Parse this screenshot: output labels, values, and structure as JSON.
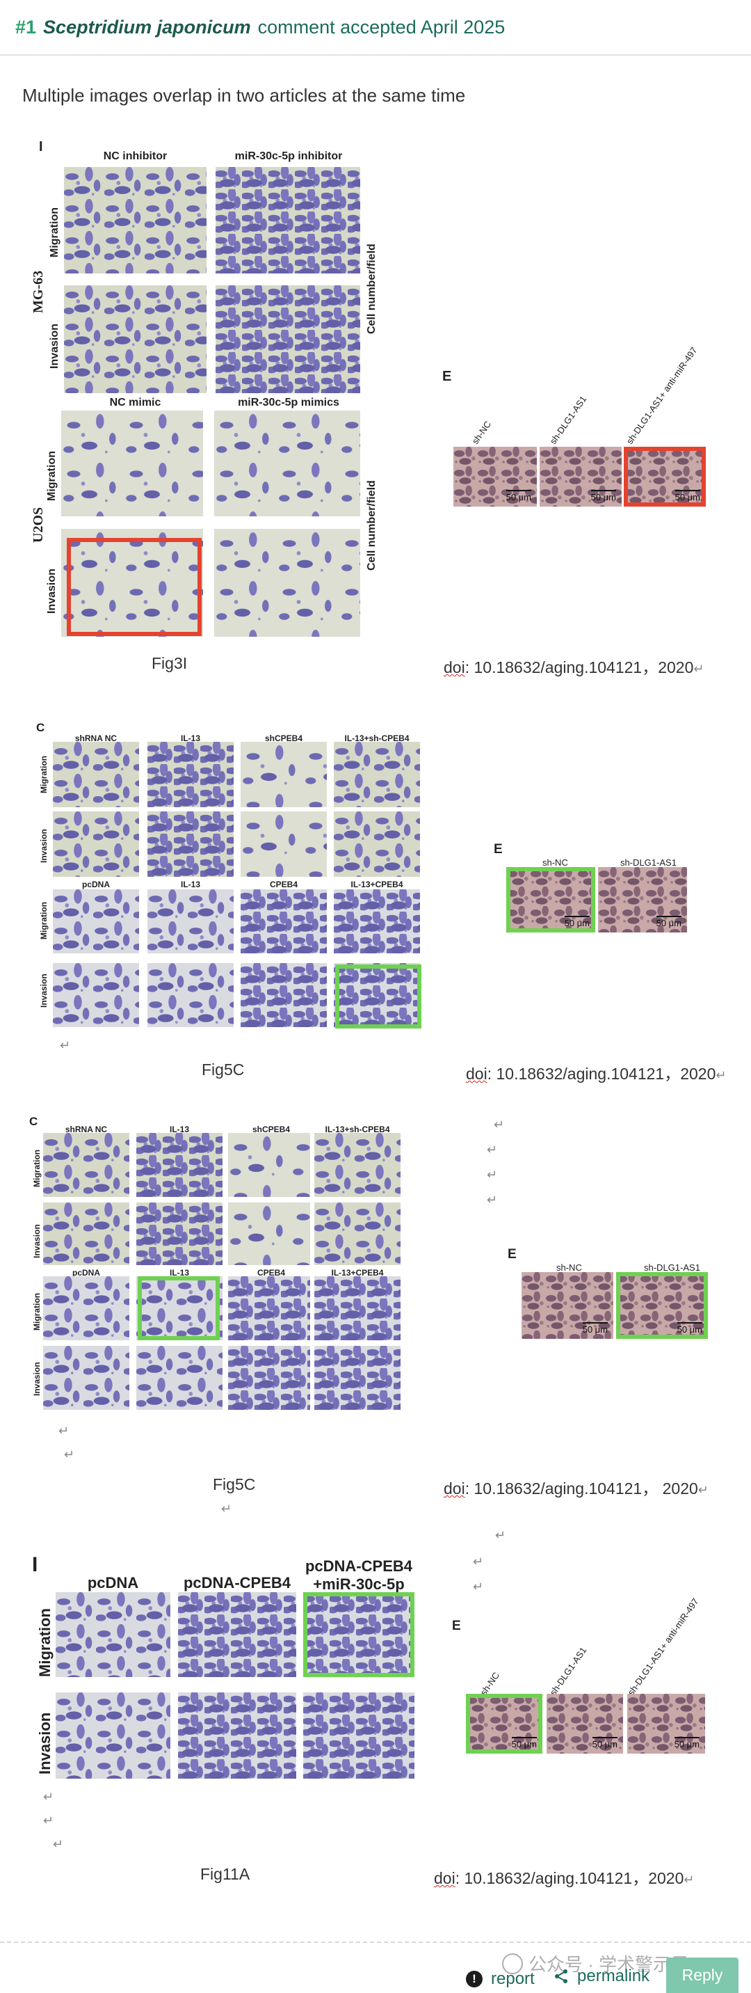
{
  "header": {
    "number": "#1",
    "species": "Sceptridium japonicum",
    "status": "comment accepted April 2025"
  },
  "comment": {
    "text": "Multiple images overlap in two articles at the same time"
  },
  "figures": [
    {
      "left_panel": {
        "letter": "I",
        "columns_top": [
          "NC inhibitor",
          "miR-30c-5p inhibitor"
        ],
        "columns_bottom": [
          "NC mimic",
          "miR-30c-5p mimics"
        ],
        "rows": [
          "Migration",
          "Invasion",
          "Migration",
          "Invasion"
        ],
        "groups": [
          "MG-63",
          "U2OS"
        ],
        "side_label": "Cell number/field"
      },
      "right_panel": {
        "letter": "E",
        "columns": [
          "sh-NC",
          "sh-DLG1-AS1",
          "sh-DLG1-AS1+ anti-miR-497"
        ],
        "scale": "50 μm"
      },
      "caption": "Fig3I",
      "doi_prefix": "doi",
      "doi_rest": ": 10.18632/aging.104121，2020"
    },
    {
      "left_panel": {
        "letter": "C",
        "columns_top": [
          "shRNA NC",
          "IL-13",
          "shCPEB4",
          "IL-13+sh-CPEB4"
        ],
        "columns_bottom": [
          "pcDNA",
          "IL-13",
          "CPEB4",
          "IL-13+CPEB4"
        ],
        "rows": [
          "Migration",
          "Invasion",
          "Migration",
          "Invasion"
        ]
      },
      "right_panel": {
        "letter": "E",
        "columns": [
          "sh-NC",
          "sh-DLG1-AS1"
        ],
        "scale": "50 μm"
      },
      "caption": "Fig5C",
      "doi_prefix": "doi",
      "doi_rest": ": 10.18632/aging.104121，2020"
    },
    {
      "left_panel": {
        "letter": "C",
        "columns_top": [
          "shRNA NC",
          "IL-13",
          "shCPEB4",
          "IL-13+sh-CPEB4"
        ],
        "columns_bottom": [
          "pcDNA",
          "IL-13",
          "CPEB4",
          "IL-13+CPEB4"
        ],
        "rows": [
          "Migration",
          "Invasion",
          "Migration",
          "Invasion"
        ]
      },
      "right_panel": {
        "letter": "E",
        "columns": [
          "sh-NC",
          "sh-DLG1-AS1"
        ],
        "scale": "50 μm"
      },
      "caption": "Fig5C",
      "doi_prefix": "doi",
      "doi_rest": ": 10.18632/aging.104121， 2020"
    },
    {
      "left_panel": {
        "letter": "I",
        "columns": [
          "pcDNA",
          "pcDNA-CPEB4",
          "pcDNA-CPEB4 +miR-30c-5p"
        ],
        "rows": [
          "Migration",
          "Invasion"
        ]
      },
      "right_panel": {
        "letter": "E",
        "columns": [
          "sh-NC",
          "sh-DLG1-AS1",
          "sh-DLG1-AS1+ anti-miR-497"
        ],
        "scale": "50 μm"
      },
      "caption": "Fig11A",
      "doi_prefix": "doi",
      "doi_rest": ": 10.18632/aging.104121，2020"
    }
  ],
  "return_mark": "↵",
  "footer": {
    "report_label": "report",
    "report_icon": "exclamation-circle-icon",
    "permalink_label": "permalink",
    "permalink_icon": "share-icon",
    "reply_label": "Reply",
    "watermark": "公众号 · 学术警示录"
  },
  "colors": {
    "header_text": "#1c6b5c",
    "number": "#2aa06d",
    "highlight_red": "#e4432f",
    "highlight_green": "#6fd152",
    "reply_button": "#7fc7ad"
  }
}
